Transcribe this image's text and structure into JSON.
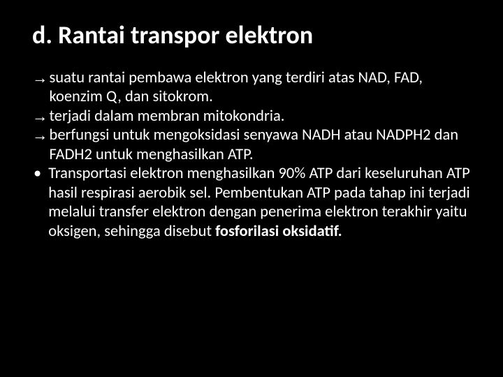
{
  "slide": {
    "title": "d. Rantai transpor elektron",
    "title_color": "#ffffff",
    "title_fontsize": 36,
    "title_fontweight": 700,
    "background_color": "#000000",
    "body_color": "#ffffff",
    "body_fontsize": 22.5,
    "body_lineheight": 1.22,
    "bullets": [
      {
        "marker": "arrow",
        "text": "suatu rantai pembawa elektron yang terdiri atas NAD, FAD, koenzim Q, dan sitokrom."
      },
      {
        "marker": "arrow",
        "text": "terjadi dalam membran mitokondria."
      },
      {
        "marker": "arrow",
        "text": "berfungsi untuk mengoksidasi senyawa NADH atau NADPH2 dan FADH2 untuk menghasilkan ATP."
      },
      {
        "marker": "dot",
        "text_pre": "Transportasi elektron menghasilkan 90% ATP dari keseluruhan ATP hasil respirasi aerobik sel. Pembentukan ATP pada tahap ini terjadi melalui transfer elektron dengan penerima elektron terakhir yaitu oksigen, sehingga disebut ",
        "text_bold": "fosforilasi oksidatif."
      }
    ],
    "arrow_glyph": "→",
    "dot_glyph": "•"
  }
}
